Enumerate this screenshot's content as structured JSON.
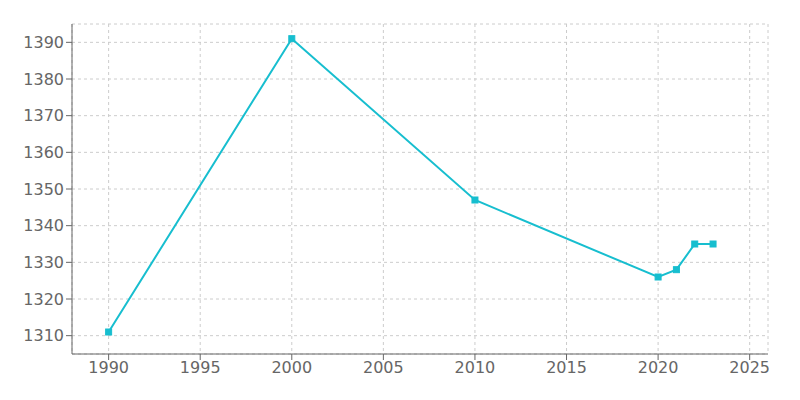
{
  "chart_data": {
    "type": "line",
    "x": [
      1990,
      2000,
      2010,
      2020,
      2021,
      2022,
      2023
    ],
    "values": [
      1311,
      1391,
      1347,
      1326,
      1328,
      1335,
      1335
    ],
    "color": "#17BECF",
    "marker": "square",
    "xlim": [
      1988,
      2026
    ],
    "ylim": [
      1305,
      1395
    ],
    "xticks": [
      1990,
      1995,
      2000,
      2005,
      2010,
      2015,
      2020,
      2025
    ],
    "yticks": [
      1310,
      1320,
      1330,
      1340,
      1350,
      1360,
      1370,
      1380,
      1390
    ],
    "grid": true
  }
}
